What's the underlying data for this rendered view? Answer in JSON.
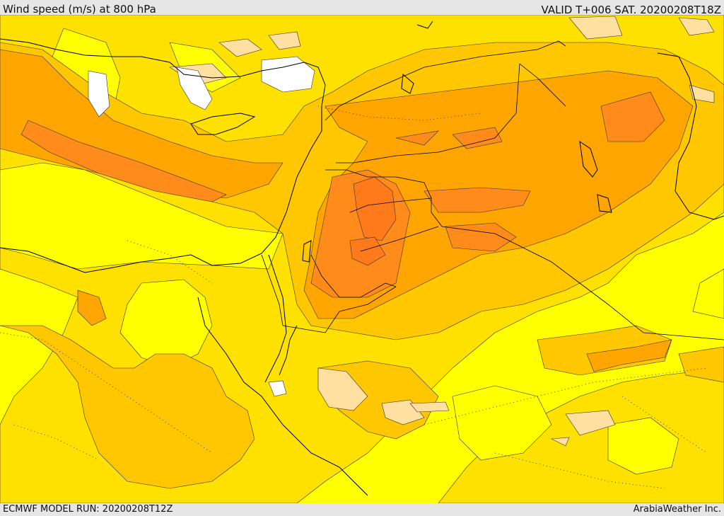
{
  "header": {
    "title": "Wind speed (m/s) at 800 hPa",
    "valid": "VALID T+006 SAT. 20200208T18Z"
  },
  "footer": {
    "model_run": "ECMWF MODEL RUN: 20200208T12Z",
    "credit": "ArabiaWeather Inc."
  },
  "palette": {
    "level_1": "#ffff00",
    "level_2": "#ffe100",
    "level_3": "#ffc700",
    "level_4": "#ffa500",
    "level_5": "#ff8c1a",
    "level_6": "#ff7a1a",
    "calm_tan": "#ffe0a0",
    "calm_white": "#ffffff",
    "land_sea_border": "#000000"
  }
}
